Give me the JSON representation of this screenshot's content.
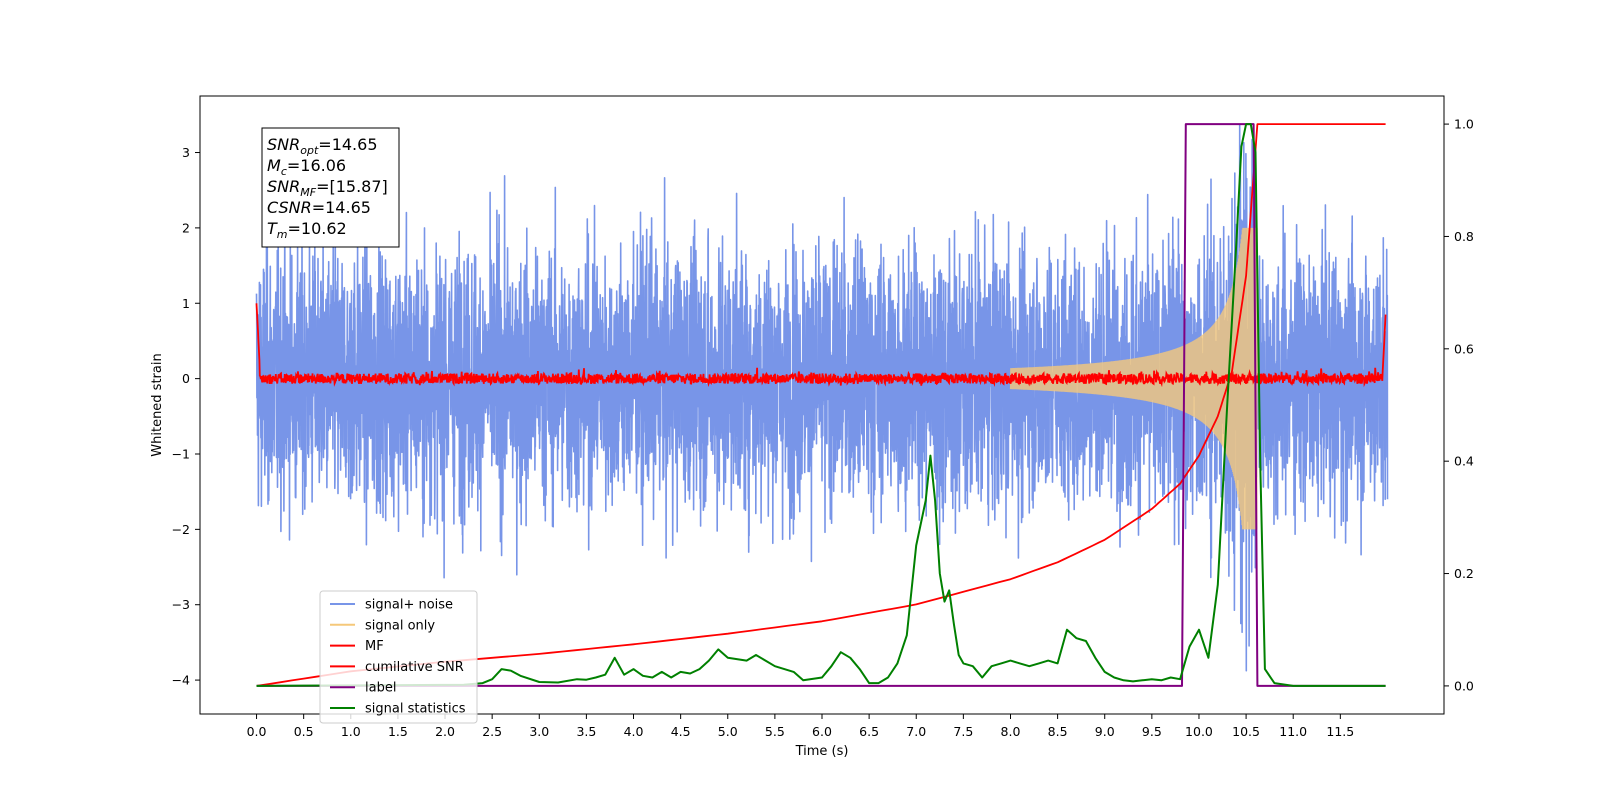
{
  "chart_data": {
    "type": "line",
    "xlabel": "Time (s)",
    "ylabel": "Whitened strain",
    "xlim": [
      -0.6,
      12.6
    ],
    "ylim": [
      -4.45,
      3.75
    ],
    "ylim_right": [
      -0.05,
      1.05
    ],
    "x_ticks": [
      "0.0",
      "0.5",
      "1.0",
      "1.5",
      "2.0",
      "2.5",
      "3.0",
      "3.5",
      "4.0",
      "4.5",
      "5.0",
      "5.5",
      "6.0",
      "6.5",
      "7.0",
      "7.5",
      "8.0",
      "8.5",
      "9.0",
      "9.5",
      "10.0",
      "10.5",
      "11.0",
      "11.5"
    ],
    "y_ticks_left": [
      "3",
      "2",
      "1",
      "0",
      "−1",
      "−2",
      "−3",
      "−4"
    ],
    "y_ticks_right": [
      "1.0",
      "0.8",
      "0.6",
      "0.4",
      "0.2",
      "0.0"
    ],
    "annotation": [
      {
        "base": "SNR",
        "sub": "opt",
        "value": "=14.65"
      },
      {
        "base": "M",
        "sub": "c",
        "value": "=16.06"
      },
      {
        "base": "SNR",
        "sub": "MF",
        "value": "=[15.87]"
      },
      {
        "base": "CSNR",
        "sub": "",
        "value": "=14.65"
      },
      {
        "base": "T",
        "sub": "m",
        "value": "=10.62"
      }
    ],
    "legend_position": "lower-left",
    "series": [
      {
        "name": "signal+ noise",
        "color": "#7895e8",
        "axis": "left",
        "noise_std": 0.85,
        "range": [
          0.0,
          12.0
        ],
        "peak_abs": 3.4
      },
      {
        "name": "signal only",
        "color": "#f5c87a",
        "axis": "left",
        "chirp_end_time": 10.62,
        "peak_amplitude": 2.0
      },
      {
        "name": "MF",
        "color": "#ff0000",
        "axis": "left",
        "baseline": 0.0,
        "edge_values": [
          1.0,
          0.85
        ],
        "peak_time": 10.62
      },
      {
        "name": "cumilative SNR",
        "color": "#ff0000",
        "axis": "right",
        "x": [
          0.0,
          1.0,
          2.0,
          3.0,
          4.0,
          5.0,
          6.0,
          7.0,
          8.0,
          8.5,
          9.0,
          9.5,
          9.8,
          10.0,
          10.2,
          10.35,
          10.5,
          10.62,
          11.98
        ],
        "y": [
          0.0,
          0.026,
          0.043,
          0.057,
          0.074,
          0.093,
          0.115,
          0.145,
          0.19,
          0.22,
          0.26,
          0.315,
          0.36,
          0.41,
          0.48,
          0.56,
          0.73,
          1.0,
          1.0
        ]
      },
      {
        "name": "label",
        "color": "#800080",
        "axis": "right",
        "x": [
          0.0,
          9.82,
          9.86,
          10.58,
          10.62,
          11.98
        ],
        "y": [
          0.0,
          0.0,
          1.0,
          1.0,
          0.0,
          0.0
        ]
      },
      {
        "name": "signal statistics",
        "color": "#008000",
        "axis": "right",
        "x": [
          0.0,
          2.2,
          2.4,
          2.5,
          2.6,
          2.7,
          2.8,
          3.0,
          3.2,
          3.4,
          3.5,
          3.6,
          3.7,
          3.8,
          3.9,
          4.0,
          4.1,
          4.2,
          4.3,
          4.4,
          4.5,
          4.6,
          4.7,
          4.8,
          4.9,
          5.0,
          5.2,
          5.3,
          5.4,
          5.5,
          5.6,
          5.7,
          5.8,
          6.0,
          6.1,
          6.2,
          6.3,
          6.4,
          6.5,
          6.6,
          6.7,
          6.8,
          6.9,
          7.0,
          7.1,
          7.15,
          7.2,
          7.25,
          7.3,
          7.35,
          7.4,
          7.45,
          7.5,
          7.6,
          7.7,
          7.8,
          7.9,
          8.0,
          8.1,
          8.2,
          8.3,
          8.4,
          8.5,
          8.6,
          8.7,
          8.8,
          8.9,
          9.0,
          9.1,
          9.2,
          9.3,
          9.4,
          9.5,
          9.6,
          9.7,
          9.8,
          9.9,
          10.0,
          10.1,
          10.2,
          10.3,
          10.4,
          10.45,
          10.5,
          10.55,
          10.6,
          10.65,
          10.7,
          10.8,
          11.0,
          11.98
        ],
        "y": [
          0.0,
          0.002,
          0.005,
          0.012,
          0.03,
          0.027,
          0.018,
          0.007,
          0.006,
          0.012,
          0.011,
          0.015,
          0.02,
          0.05,
          0.02,
          0.03,
          0.018,
          0.015,
          0.025,
          0.015,
          0.025,
          0.022,
          0.03,
          0.045,
          0.065,
          0.05,
          0.045,
          0.055,
          0.045,
          0.035,
          0.03,
          0.025,
          0.01,
          0.015,
          0.035,
          0.06,
          0.05,
          0.03,
          0.005,
          0.005,
          0.015,
          0.04,
          0.09,
          0.25,
          0.33,
          0.41,
          0.33,
          0.2,
          0.15,
          0.17,
          0.11,
          0.055,
          0.04,
          0.035,
          0.015,
          0.035,
          0.04,
          0.045,
          0.04,
          0.035,
          0.04,
          0.045,
          0.04,
          0.1,
          0.085,
          0.08,
          0.05,
          0.025,
          0.015,
          0.01,
          0.008,
          0.01,
          0.012,
          0.01,
          0.015,
          0.012,
          0.07,
          0.1,
          0.05,
          0.18,
          0.5,
          0.8,
          0.96,
          1.0,
          1.0,
          0.95,
          0.4,
          0.03,
          0.005,
          0.0,
          0.0
        ]
      }
    ]
  }
}
